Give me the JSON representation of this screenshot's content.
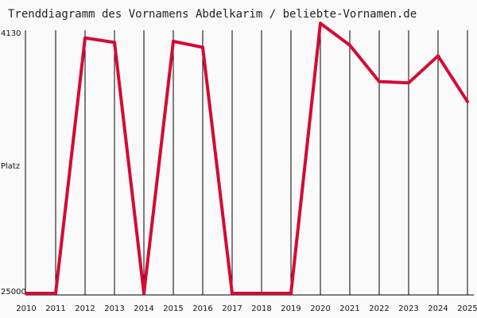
{
  "chart_data": {
    "type": "line",
    "title": "Trenddiagramm des Vornamens Abdelkarim / beliebte-Vornamen.de",
    "ylabel": "Platz",
    "y_axis_inverted": true,
    "y_tick_labels": [
      "4130",
      "25000"
    ],
    "ylim": [
      4130,
      25000
    ],
    "x": [
      "2010",
      "2011",
      "2012",
      "2013",
      "2014",
      "2015",
      "2016",
      "2017",
      "2018",
      "2019",
      "2020",
      "2021",
      "2022",
      "2023",
      "2024",
      "2025"
    ],
    "series": [
      {
        "values": [
          25000,
          25000,
          4620,
          4980,
          25000,
          4890,
          5370,
          25000,
          25000,
          25000,
          3450,
          5200,
          8100,
          8200,
          6050,
          9700
        ]
      }
    ],
    "grid": "vertical",
    "legend": "none",
    "colors": {
      "line": "#d40a35",
      "grid": "#000000",
      "background": "#fafafa"
    }
  }
}
